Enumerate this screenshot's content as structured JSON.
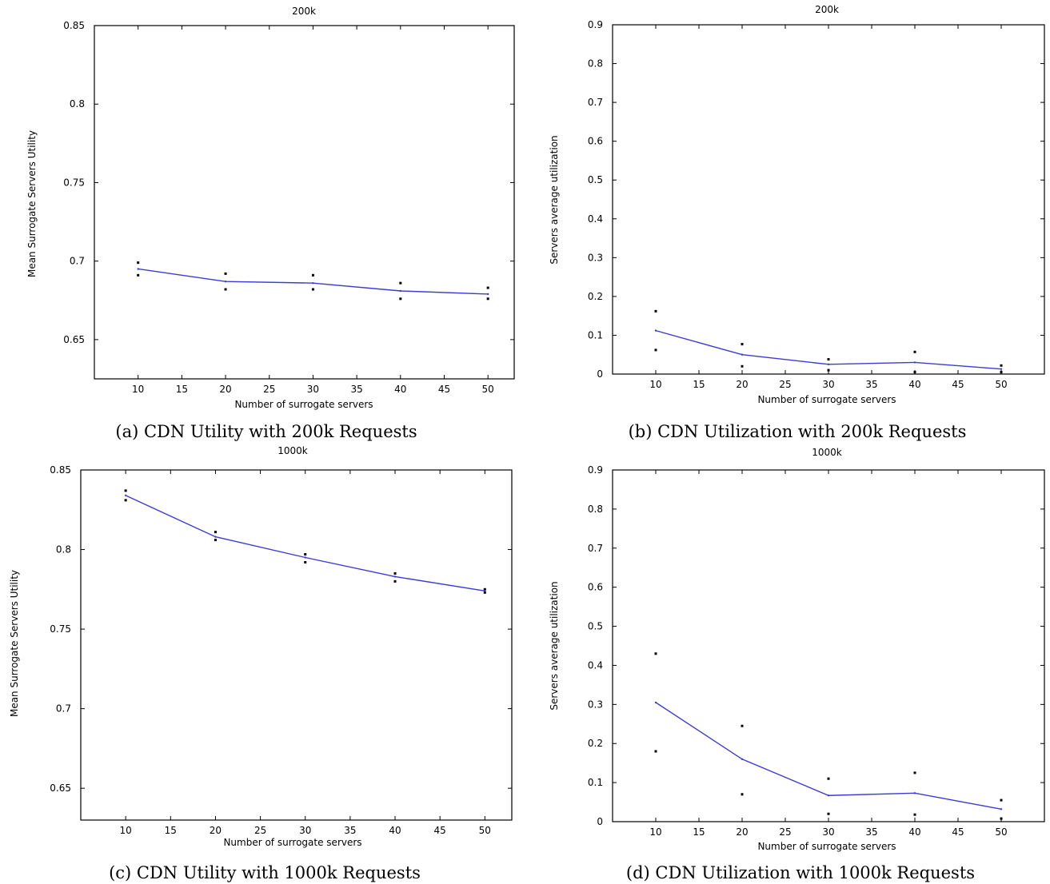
{
  "colors": {
    "series_line": "#3b3bd6",
    "markers": "#000000",
    "axes": "#000000"
  },
  "chart_data": [
    {
      "type": "line",
      "title": "200k",
      "caption": "(a) CDN Utility with 200k Requests",
      "xlabel": "Number of surrogate servers",
      "ylabel": "Mean Surrogate Servers Utility",
      "xlim": [
        5,
        53
      ],
      "ylim": [
        0.625,
        0.85
      ],
      "xticks": [
        10,
        15,
        20,
        25,
        30,
        35,
        40,
        45,
        50
      ],
      "yticks": [
        0.65,
        0.7,
        0.75,
        0.8,
        0.85
      ],
      "ytick_labels": [
        "0.65",
        "0.7",
        "0.75",
        "0.8",
        "0.85"
      ],
      "grid": false,
      "x": [
        10,
        20,
        30,
        40,
        50
      ],
      "series": [
        {
          "values": [
            0.695,
            0.687,
            0.686,
            0.681,
            0.679
          ],
          "upper": [
            0.699,
            0.692,
            0.691,
            0.686,
            0.683
          ],
          "lower": [
            0.691,
            0.682,
            0.682,
            0.676,
            0.676
          ]
        }
      ]
    },
    {
      "type": "line",
      "title": "200k",
      "caption": "(b) CDN Utilization with 200k Requests",
      "xlabel": "Number of surrogate servers",
      "ylabel": "Servers average utilization",
      "xlim": [
        5,
        55
      ],
      "ylim": [
        0,
        0.9
      ],
      "xticks": [
        10,
        15,
        20,
        25,
        30,
        35,
        40,
        45,
        50
      ],
      "yticks": [
        0,
        0.1,
        0.2,
        0.3,
        0.4,
        0.5,
        0.6,
        0.7,
        0.8,
        0.9
      ],
      "ytick_labels": [
        "0",
        "0.1",
        "0.2",
        "0.3",
        "0.4",
        "0.5",
        "0.6",
        "0.7",
        "0.8",
        "0.9"
      ],
      "grid": false,
      "x": [
        10,
        20,
        30,
        40,
        50
      ],
      "series": [
        {
          "values": [
            0.112,
            0.05,
            0.025,
            0.03,
            0.013
          ],
          "upper": [
            0.162,
            0.077,
            0.038,
            0.057,
            0.022
          ],
          "lower": [
            0.062,
            0.02,
            0.01,
            0.005,
            0.005
          ]
        }
      ]
    },
    {
      "type": "line",
      "title": "1000k",
      "caption": "(c) CDN Utility with 1000k Requests",
      "xlabel": "Number of surrogate servers",
      "ylabel": "Mean Surrogate Servers Utility",
      "xlim": [
        5,
        53
      ],
      "ylim": [
        0.63,
        0.85
      ],
      "xticks": [
        10,
        15,
        20,
        25,
        30,
        35,
        40,
        45,
        50
      ],
      "yticks": [
        0.65,
        0.7,
        0.75,
        0.8,
        0.85
      ],
      "ytick_labels": [
        "0.65",
        "0.7",
        "0.75",
        "0.8",
        "0.85"
      ],
      "grid": false,
      "x": [
        10,
        20,
        30,
        40,
        50
      ],
      "series": [
        {
          "values": [
            0.834,
            0.808,
            0.795,
            0.783,
            0.774
          ],
          "upper": [
            0.837,
            0.811,
            0.797,
            0.785,
            0.775
          ],
          "lower": [
            0.831,
            0.806,
            0.792,
            0.78,
            0.773
          ]
        }
      ]
    },
    {
      "type": "line",
      "title": "1000k",
      "caption": "(d) CDN Utilization with 1000k Requests",
      "xlabel": "Number of surrogate servers",
      "ylabel": "Servers average utilization",
      "xlim": [
        5,
        55
      ],
      "ylim": [
        0,
        0.9
      ],
      "xticks": [
        10,
        15,
        20,
        25,
        30,
        35,
        40,
        45,
        50
      ],
      "yticks": [
        0,
        0.1,
        0.2,
        0.3,
        0.4,
        0.5,
        0.6,
        0.7,
        0.8,
        0.9
      ],
      "ytick_labels": [
        "0",
        "0.1",
        "0.2",
        "0.3",
        "0.4",
        "0.5",
        "0.6",
        "0.7",
        "0.8",
        "0.9"
      ],
      "grid": false,
      "x": [
        10,
        20,
        30,
        40,
        50
      ],
      "series": [
        {
          "values": [
            0.305,
            0.16,
            0.067,
            0.073,
            0.032
          ],
          "upper": [
            0.43,
            0.245,
            0.11,
            0.125,
            0.055
          ],
          "lower": [
            0.18,
            0.07,
            0.02,
            0.018,
            0.008
          ]
        }
      ]
    }
  ]
}
